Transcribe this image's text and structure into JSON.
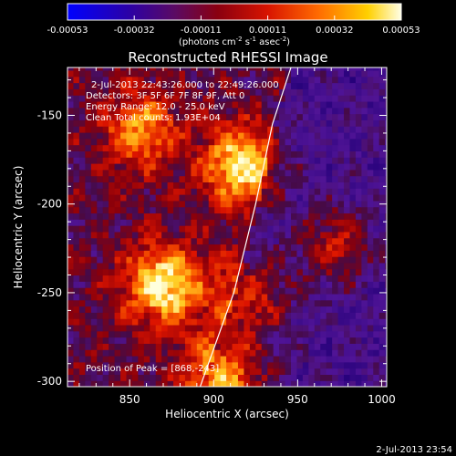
{
  "chart_data": {
    "type": "heatmap",
    "title": "Reconstructed RHESSI Image",
    "xlabel": "Heliocentric X (arcsec)",
    "ylabel": "Heliocentric Y (arcsec)",
    "xlim": [
      813,
      1003
    ],
    "ylim": [
      -303,
      -123
    ],
    "xticks": [
      850,
      900,
      950,
      1000
    ],
    "yticks": [
      -150,
      -200,
      -250,
      -300
    ],
    "colorbar": {
      "ticks": [
        "-0.00053",
        "-0.00032",
        "-0.00011",
        "0.00011",
        "0.00032",
        "0.00053"
      ],
      "unit_base": "(photons cm",
      "unit_sup1": "-2",
      "unit_mid1": " s",
      "unit_sup2": "-1",
      "unit_mid2": " asec",
      "unit_sup3": "-2",
      "unit_end": ")"
    },
    "annotations": {
      "time_range": "2-Jul-2013 22:43:26.000 to 22:49:26.000",
      "detectors": "Detectors: 3F 5F 6F 7F 8F 9F, Att 0",
      "energy": "Energy Range: 12.0 - 25.0 keV",
      "clean": "Clean     Total counts: 1.93E+04",
      "peak": "Position of Peak = [868,-243]"
    },
    "peak_position": [
      868,
      -243
    ],
    "limb_points": [
      [
        892,
        -303
      ],
      [
        912,
        -250
      ],
      [
        925,
        -200
      ],
      [
        935,
        -155
      ],
      [
        946,
        -123
      ]
    ],
    "bright_sources": [
      {
        "x": 868,
        "y": -247,
        "level": 1.0
      },
      {
        "x": 915,
        "y": -180,
        "level": 0.95
      },
      {
        "x": 905,
        "y": -300,
        "level": 1.0
      },
      {
        "x": 855,
        "y": -160,
        "level": 0.7
      },
      {
        "x": 920,
        "y": -255,
        "level": 0.65
      },
      {
        "x": 970,
        "y": -225,
        "level": 0.55
      }
    ],
    "timestamp": "2-Jul-2013 23:54"
  }
}
